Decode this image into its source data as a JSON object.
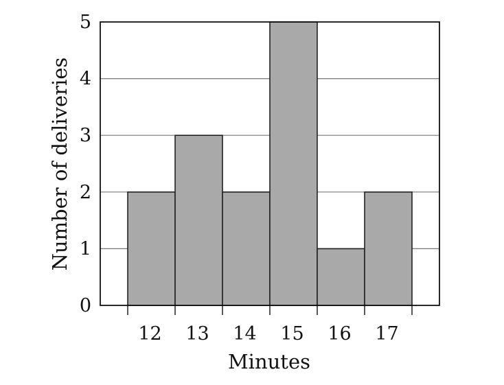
{
  "chart_data": {
    "type": "bar",
    "categories": [
      "12",
      "13",
      "14",
      "15",
      "16",
      "17"
    ],
    "values": [
      2,
      3,
      2,
      5,
      1,
      2
    ],
    "xlabel": "Minutes",
    "ylabel": "Number of deliveries",
    "ylim": [
      0,
      5
    ],
    "yticks": [
      "0",
      "1",
      "2",
      "3",
      "4",
      "5"
    ],
    "grid": true,
    "colors": {
      "bar": "#a9a9a9",
      "edge": "#222222",
      "grid": "#777777"
    }
  }
}
